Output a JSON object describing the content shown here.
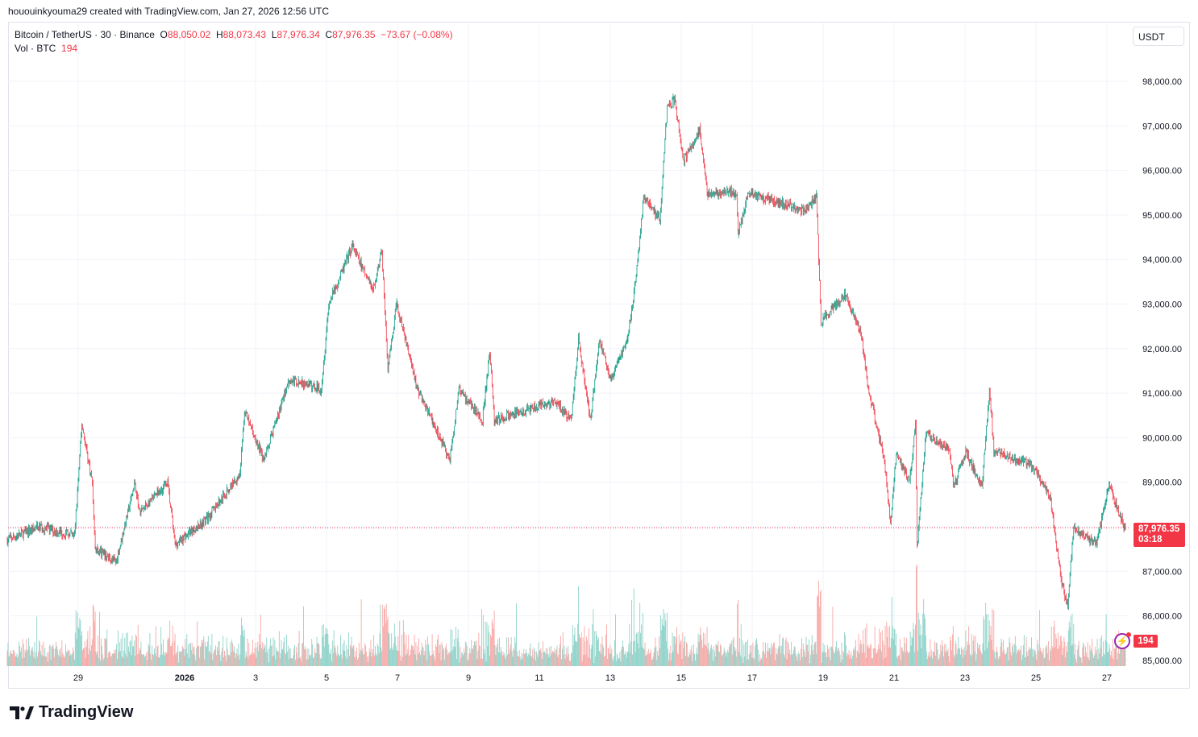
{
  "credit": "hououinkyouma29 created with TradingView.com, Jan 27, 2026 12:56 UTC",
  "legend": {
    "symbol": "Bitcoin / TetherUS · 30 · Binance",
    "o_label": "O",
    "o": "88,050.02",
    "h_label": "H",
    "h": "88,073.43",
    "l_label": "L",
    "l": "87,976.34",
    "c_label": "C",
    "c": "87,976.35",
    "change": "−73.67 (−0.08%)",
    "vol_label": "Vol · BTC",
    "vol": "194"
  },
  "price_unit": "USDT",
  "last_price_tag": {
    "price": "87,976.35",
    "countdown": "03:18"
  },
  "volume_tag": "194",
  "logo": "TradingView",
  "colors": {
    "up": "#089981",
    "down": "#f23645",
    "up_volume": "#8fd3c9",
    "down_volume": "#f7a9a7",
    "grid": "#f0f3fa",
    "last_price_line": "#f23645"
  },
  "chart_data": {
    "type": "candlestick",
    "interval": "30",
    "symbol": "BTCUSDT",
    "exchange": "Binance",
    "y_ticks": [
      "98,000.00",
      "97,000.00",
      "96,000.00",
      "95,000.00",
      "94,000.00",
      "93,000.00",
      "92,000.00",
      "91,000.00",
      "90,000.00",
      "89,000.00",
      "88,000.00",
      "87,000.00",
      "86,000.00",
      "85,000.00"
    ],
    "ylim": [
      85000,
      98000
    ],
    "x_ticks": [
      {
        "date": "2025-12-29",
        "label": "29"
      },
      {
        "date": "2026-01-01",
        "label": "2026"
      },
      {
        "date": "2026-01-03",
        "label": "3"
      },
      {
        "date": "2026-01-05",
        "label": "5"
      },
      {
        "date": "2026-01-07",
        "label": "7"
      },
      {
        "date": "2026-01-09",
        "label": "9"
      },
      {
        "date": "2026-01-11",
        "label": "11"
      },
      {
        "date": "2026-01-13",
        "label": "13"
      },
      {
        "date": "2026-01-15",
        "label": "15"
      },
      {
        "date": "2026-01-17",
        "label": "17"
      },
      {
        "date": "2026-01-19",
        "label": "19"
      },
      {
        "date": "2026-01-21",
        "label": "21"
      },
      {
        "date": "2026-01-23",
        "label": "23"
      },
      {
        "date": "2026-01-25",
        "label": "25"
      },
      {
        "date": "2026-01-27",
        "label": "27"
      }
    ],
    "last_close": 87976.35,
    "last_volume": 194,
    "grid": true,
    "price_path": [
      [
        "2025-12-27T00:00",
        87700
      ],
      [
        "2025-12-27T22:00",
        88000
      ],
      [
        "2025-12-28T22:00",
        87800
      ],
      [
        "2025-12-29T03:00",
        90300
      ],
      [
        "2025-12-29T10:00",
        89000
      ],
      [
        "2025-12-29T12:00",
        87500
      ],
      [
        "2025-12-30T02:00",
        87200
      ],
      [
        "2025-12-30T15:00",
        89000
      ],
      [
        "2025-12-30T18:00",
        88300
      ],
      [
        "2025-12-31T13:00",
        89000
      ],
      [
        "2025-12-31T18:00",
        87600
      ],
      [
        "2026-01-01T16:00",
        88200
      ],
      [
        "2026-01-02T14:00",
        89200
      ],
      [
        "2026-01-02T17:00",
        90600
      ],
      [
        "2026-01-03T06:00",
        89500
      ],
      [
        "2026-01-03T23:00",
        91300
      ],
      [
        "2026-01-04T21:00",
        91100
      ],
      [
        "2026-01-05T02:00",
        93000
      ],
      [
        "2026-01-05T18:00",
        94300
      ],
      [
        "2026-01-06T08:00",
        93300
      ],
      [
        "2026-01-06T14:00",
        94200
      ],
      [
        "2026-01-06T18:00",
        91500
      ],
      [
        "2026-01-07T00:00",
        93000
      ],
      [
        "2026-01-07T14:00",
        91100
      ],
      [
        "2026-01-08T12:00",
        89500
      ],
      [
        "2026-01-08T18:00",
        91100
      ],
      [
        "2026-01-09T10:00",
        90400
      ],
      [
        "2026-01-09T15:00",
        91900
      ],
      [
        "2026-01-09T18:00",
        90400
      ],
      [
        "2026-01-11T11:00",
        90800
      ],
      [
        "2026-01-11T22:00",
        90400
      ],
      [
        "2026-01-12T03:00",
        92200
      ],
      [
        "2026-01-12T11:00",
        90400
      ],
      [
        "2026-01-12T17:00",
        92200
      ],
      [
        "2026-01-13T01:00",
        91300
      ],
      [
        "2026-01-13T12:00",
        92200
      ],
      [
        "2026-01-13T18:00",
        93600
      ],
      [
        "2026-01-13T23:00",
        95400
      ],
      [
        "2026-01-14T10:00",
        94900
      ],
      [
        "2026-01-14T15:00",
        97400
      ],
      [
        "2026-01-14T20:00",
        97600
      ],
      [
        "2026-01-15T02:00",
        96200
      ],
      [
        "2026-01-15T13:00",
        96900
      ],
      [
        "2026-01-15T18:00",
        95500
      ],
      [
        "2026-01-16T14:00",
        95500
      ],
      [
        "2026-01-16T15:00",
        94600
      ],
      [
        "2026-01-16T22:00",
        95500
      ],
      [
        "2026-01-18T12:00",
        95100
      ],
      [
        "2026-01-18T20:00",
        95400
      ],
      [
        "2026-01-18T23:00",
        92600
      ],
      [
        "2026-01-19T15:00",
        93200
      ],
      [
        "2026-01-20T02:00",
        92400
      ],
      [
        "2026-01-20T07:00",
        91100
      ],
      [
        "2026-01-20T18:00",
        89500
      ],
      [
        "2026-01-20T22:00",
        88100
      ],
      [
        "2026-01-21T02:00",
        89700
      ],
      [
        "2026-01-21T11:00",
        89000
      ],
      [
        "2026-01-21T15:00",
        90300
      ],
      [
        "2026-01-21T16:00",
        87500
      ],
      [
        "2026-01-21T22:00",
        90100
      ],
      [
        "2026-01-22T14:00",
        89700
      ],
      [
        "2026-01-22T17:00",
        88900
      ],
      [
        "2026-01-23T01:00",
        89700
      ],
      [
        "2026-01-23T12:00",
        88900
      ],
      [
        "2026-01-23T17:00",
        91100
      ],
      [
        "2026-01-23T20:00",
        89700
      ],
      [
        "2026-01-24T21:00",
        89400
      ],
      [
        "2026-01-25T10:00",
        88700
      ],
      [
        "2026-01-25T18:00",
        86700
      ],
      [
        "2026-01-25T22:00",
        86300
      ],
      [
        "2026-01-26T02:00",
        88000
      ],
      [
        "2026-01-26T17:00",
        87600
      ],
      [
        "2026-01-27T02:00",
        88900
      ],
      [
        "2026-01-27T12:30",
        87976.35
      ]
    ]
  }
}
